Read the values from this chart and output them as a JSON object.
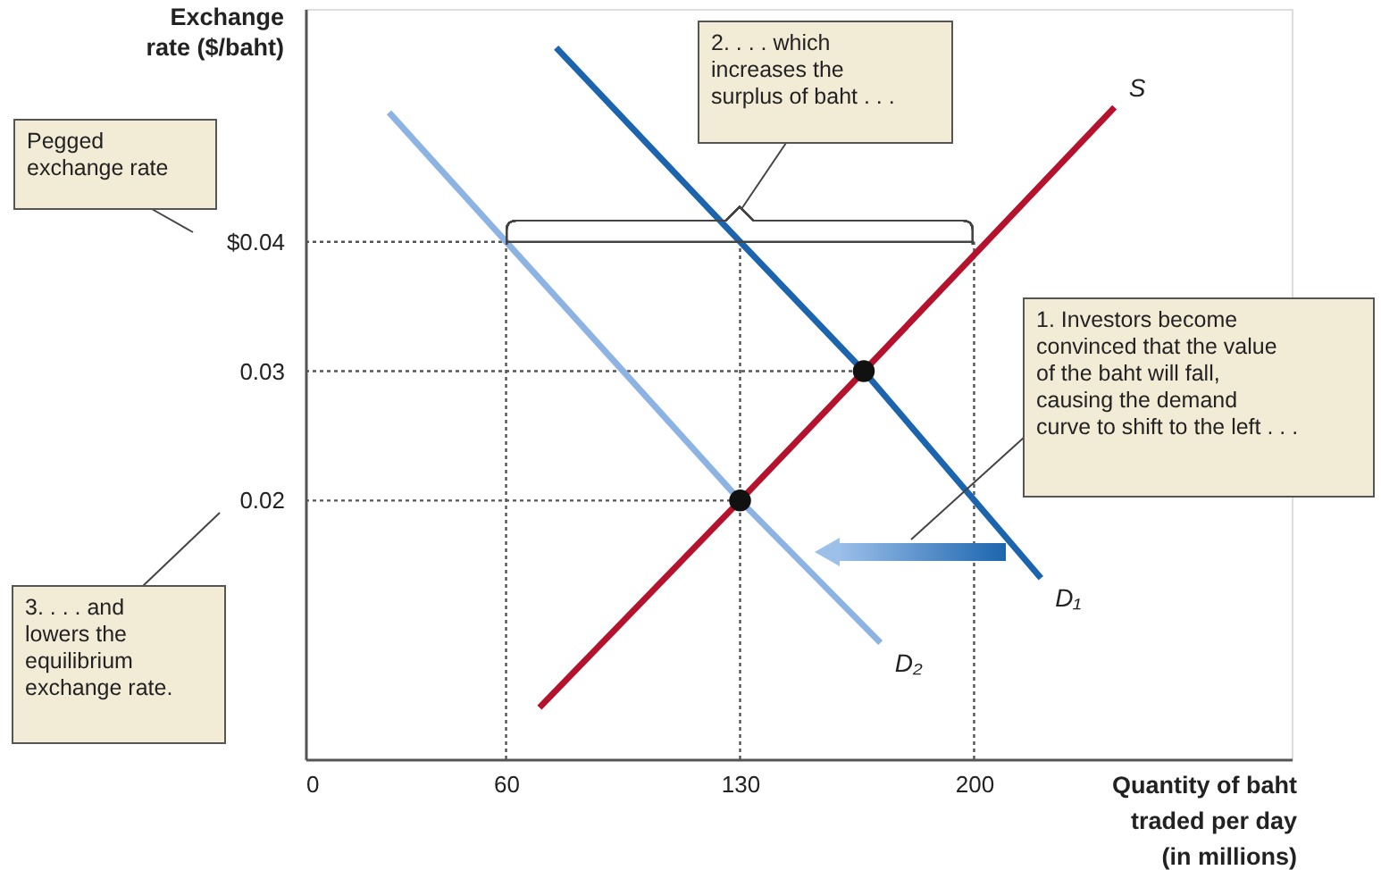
{
  "chart_data": {
    "type": "line",
    "ylabel": "Exchange\nrate ($/baht)",
    "xlabel": "Quantity of baht\ntraded per day\n(in millions)",
    "xlim": [
      0,
      295
    ],
    "ylim": [
      0,
      0.058
    ],
    "xticks": [
      0,
      60,
      130,
      200
    ],
    "yticks": [
      {
        "value": 0.04,
        "label": "$0.04"
      },
      0.03,
      0.02
    ],
    "grid": false,
    "series": [
      {
        "name": "S",
        "color": "#b5122e",
        "x": [
          70,
          130,
          167,
          242
        ],
        "values": [
          0.004,
          0.02,
          0.03,
          0.0504
        ]
      },
      {
        "name": "D₁",
        "color": "#1c65ae",
        "x": [
          75,
          130,
          167,
          220
        ],
        "values": [
          0.055,
          0.04,
          0.03,
          0.014
        ]
      },
      {
        "name": "D₂",
        "color": "#8db3e2",
        "x": [
          25,
          60,
          130,
          172
        ],
        "values": [
          0.05,
          0.04,
          0.02,
          0.009
        ]
      },
      {
        "type": "scatter",
        "marker": "circle",
        "color": "#111111",
        "x": [
          130,
          167
        ],
        "values": [
          0.02,
          0.03
        ]
      },
      {
        "line_style": "dotted",
        "color": "#555555",
        "x": [
          0,
          60
        ],
        "values": [
          0.04,
          0.04
        ]
      },
      {
        "line_style": "solid",
        "color": "#444444",
        "x": [
          60,
          200
        ],
        "values": [
          0.04,
          0.04
        ]
      },
      {
        "line_style": "dotted",
        "color": "#555555",
        "x": [
          0,
          167
        ],
        "values": [
          0.03,
          0.03
        ]
      },
      {
        "line_style": "dotted",
        "color": "#555555",
        "x": [
          0,
          130
        ],
        "values": [
          0.02,
          0.02
        ]
      },
      {
        "line_style": "dotted",
        "color": "#555555",
        "x": [
          60,
          60
        ],
        "values": [
          0,
          0.04
        ]
      },
      {
        "line_style": "dotted",
        "color": "#555555",
        "x": [
          130,
          130
        ],
        "values": [
          0,
          0.04
        ]
      },
      {
        "line_style": "dotted",
        "color": "#555555",
        "x": [
          200,
          200
        ],
        "values": [
          0,
          0.04
        ]
      }
    ],
    "annotations": [
      "Pegged\nexchange rate",
      "2. . . . which\nincreases the\nsurplus of baht . . .",
      "1. Investors become\nconvinced that the value\nof the baht will fall,\ncausing the demand\ncurve to shift to the left . . .",
      "3. . . . and\nlowers the\nequilibrium\nexchange rate."
    ]
  }
}
